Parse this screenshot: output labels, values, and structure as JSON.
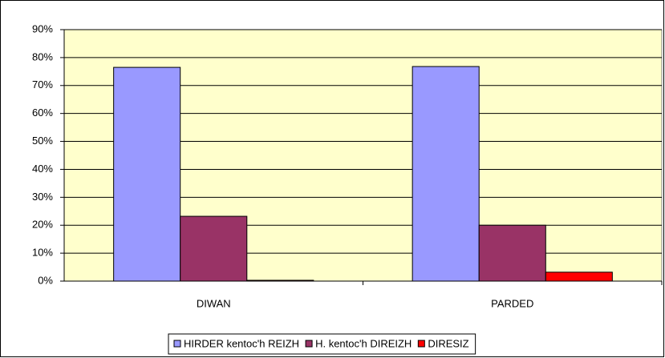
{
  "chart_data": {
    "type": "bar",
    "categories": [
      "DIWAN",
      "PARDED"
    ],
    "series": [
      {
        "name": "HIRDER kentoc'h REIZH",
        "color": "#9999ff",
        "values": [
          76.5,
          76.8
        ]
      },
      {
        "name": "H. kentoc'h DIREIZH",
        "color": "#993366",
        "values": [
          23.2,
          20
        ]
      },
      {
        "name": "DIRESIZ",
        "color": "#ff0000",
        "values": [
          0.3,
          3.2
        ]
      }
    ],
    "ylim": [
      0,
      90
    ],
    "yticks": [
      {
        "value": 0,
        "label": "0%"
      },
      {
        "value": 10,
        "label": "10%"
      },
      {
        "value": 20,
        "label": "20%"
      },
      {
        "value": 30,
        "label": "30%"
      },
      {
        "value": 40,
        "label": "40%"
      },
      {
        "value": 50,
        "label": "50%"
      },
      {
        "value": 60,
        "label": "60%"
      },
      {
        "value": 70,
        "label": "70%"
      },
      {
        "value": 80,
        "label": "80%"
      },
      {
        "value": 90,
        "label": "90%"
      }
    ],
    "grid": true,
    "legend": "bottom",
    "plot_background": "#ffffcc"
  }
}
